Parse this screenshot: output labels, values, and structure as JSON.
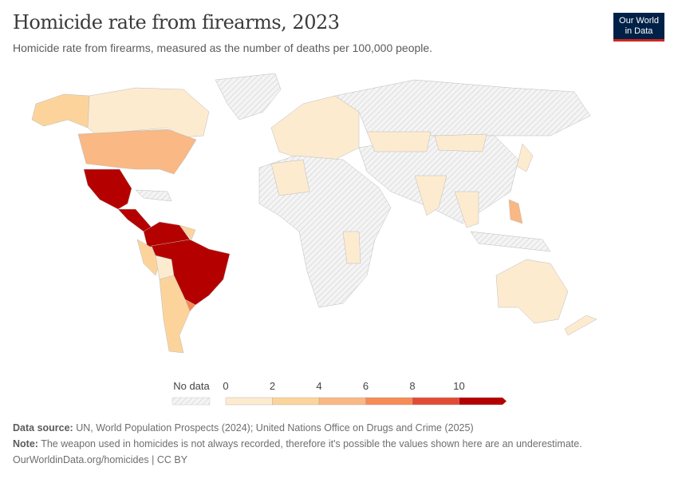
{
  "header": {
    "title": "Homicide rate from firearms, 2023",
    "subtitle": "Homicide rate from firearms, measured as the number of deaths per 100,000 people.",
    "logo_line1": "Our World",
    "logo_line2": "in Data"
  },
  "map": {
    "type": "choropleth",
    "no_data_color": "#e8e8e8",
    "no_data_pattern": "diagonal-hatch"
  },
  "legend": {
    "no_data_label": "No data",
    "ticks": [
      "0",
      "2",
      "4",
      "6",
      "8",
      "10"
    ],
    "bins": [
      {
        "min": 0,
        "max": 2,
        "color": "#fdebd0"
      },
      {
        "min": 2,
        "max": 4,
        "color": "#fcd49b"
      },
      {
        "min": 4,
        "max": 6,
        "color": "#f9b884"
      },
      {
        "min": 6,
        "max": 8,
        "color": "#f68b56"
      },
      {
        "min": 8,
        "max": 10,
        "color": "#e14b35"
      },
      {
        "min": 10,
        "max": null,
        "color": "#b50000"
      }
    ]
  },
  "footer": {
    "source_label": "Data source:",
    "source_text": "UN, World Population Prospects (2024); United Nations Office on Drugs and Crime (2025)",
    "note_label": "Note:",
    "note_text": "The weapon used in homicides is not always recorded, therefore it's possible the values shown here are an underestimate.",
    "link": "OurWorldinData.org/homicides | CC BY"
  }
}
